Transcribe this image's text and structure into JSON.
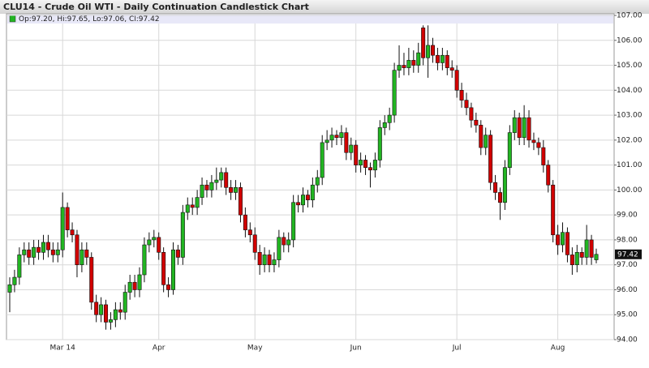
{
  "chart_data": {
    "type": "candlestick",
    "title": "CLU14 - Crude Oil WTI - Daily Continuation Candlestick Chart",
    "legend_text": "Op:97.20, Hi:97.65, Lo:97.06, Cl:97.42",
    "up_color": "#22b522",
    "down_color": "#d10000",
    "grid": true,
    "categories": [
      null,
      null,
      null,
      null,
      null,
      null,
      null,
      null,
      null,
      null,
      null,
      "Mar 14",
      null,
      null,
      null,
      null,
      null,
      null,
      null,
      null,
      null,
      null,
      null,
      null,
      null,
      null,
      null,
      null,
      null,
      null,
      null,
      "Apr",
      null,
      null,
      null,
      null,
      null,
      null,
      null,
      null,
      null,
      null,
      null,
      null,
      null,
      null,
      null,
      null,
      null,
      null,
      null,
      "May",
      null,
      null,
      null,
      null,
      null,
      null,
      null,
      null,
      null,
      null,
      null,
      null,
      null,
      null,
      null,
      null,
      null,
      null,
      null,
      null,
      "Jun",
      null,
      null,
      null,
      null,
      null,
      null,
      null,
      null,
      null,
      null,
      null,
      null,
      null,
      null,
      null,
      null,
      null,
      null,
      null,
      null,
      "Jul",
      null,
      null,
      null,
      null,
      null,
      null,
      null,
      null,
      null,
      null,
      null,
      null,
      null,
      null,
      null,
      null,
      null,
      null,
      null,
      null,
      "Aug",
      null,
      null,
      null,
      null,
      null,
      null,
      null,
      null
    ],
    "open": [
      95.9,
      96.2,
      96.5,
      97.4,
      97.6,
      97.3,
      97.7,
      97.5,
      97.9,
      97.6,
      97.4,
      97.6,
      99.3,
      98.4,
      98.2,
      97.0,
      97.6,
      97.3,
      95.5,
      95.0,
      95.4,
      94.7,
      94.8,
      95.2,
      95.1,
      95.9,
      96.3,
      96.0,
      96.6,
      97.8,
      98.0,
      98.1,
      97.5,
      96.2,
      96.0,
      97.6,
      97.3,
      99.1,
      99.4,
      99.3,
      99.7,
      100.2,
      100.0,
      100.3,
      100.4,
      100.7,
      100.1,
      99.9,
      100.1,
      99.0,
      98.4,
      98.2,
      97.5,
      97.0,
      97.4,
      97.0,
      97.2,
      98.1,
      97.8,
      98.0,
      99.5,
      99.4,
      99.8,
      99.6,
      100.2,
      100.5,
      101.9,
      102.0,
      102.2,
      102.1,
      102.3,
      101.5,
      101.8,
      101.0,
      101.2,
      100.9,
      100.8,
      101.2,
      102.5,
      102.7,
      103.0,
      104.8,
      105.0,
      104.9,
      105.2,
      105.0,
      106.5,
      105.3,
      105.8,
      105.4,
      105.1,
      105.4,
      104.9,
      104.8,
      104.0,
      103.6,
      103.3,
      102.8,
      102.6,
      101.7,
      102.2,
      100.3,
      99.9,
      99.5,
      100.9,
      102.3,
      102.9,
      102.1,
      102.9,
      102.0,
      101.9,
      101.7,
      101.0,
      100.2,
      98.2,
      97.8,
      98.3,
      97.4,
      97.0,
      97.5,
      97.3,
      98.0,
      97.2
    ],
    "high": [
      96.5,
      96.8,
      97.7,
      97.9,
      97.9,
      98.0,
      98.0,
      98.2,
      98.2,
      97.9,
      97.9,
      99.9,
      99.5,
      98.7,
      98.4,
      97.9,
      97.9,
      97.5,
      95.8,
      95.7,
      95.6,
      95.1,
      95.5,
      95.5,
      96.2,
      96.6,
      96.6,
      96.9,
      98.1,
      98.3,
      98.4,
      98.3,
      97.7,
      96.5,
      97.9,
      97.8,
      99.4,
      99.7,
      99.7,
      100.0,
      100.5,
      100.4,
      100.6,
      100.9,
      100.9,
      100.9,
      100.4,
      100.4,
      100.3,
      99.3,
      98.7,
      98.5,
      97.8,
      97.7,
      97.6,
      97.5,
      98.4,
      98.3,
      98.3,
      99.8,
      99.8,
      100.1,
      100.0,
      100.5,
      100.8,
      102.2,
      102.4,
      102.5,
      102.4,
      102.6,
      102.5,
      102.1,
      102.0,
      101.5,
      101.4,
      101.1,
      101.5,
      102.8,
      103.0,
      103.3,
      105.1,
      105.8,
      105.5,
      105.7,
      105.6,
      105.9,
      106.6,
      106.6,
      106.1,
      105.7,
      105.7,
      105.6,
      105.2,
      105.0,
      104.3,
      103.9,
      103.5,
      103.1,
      102.8,
      102.5,
      102.4,
      100.6,
      100.1,
      101.2,
      102.6,
      103.2,
      103.1,
      103.4,
      103.2,
      102.3,
      102.1,
      102.0,
      101.2,
      100.4,
      98.6,
      98.7,
      98.5,
      97.7,
      97.8,
      97.7,
      98.6,
      98.2,
      97.65
    ],
    "low": [
      95.1,
      95.9,
      96.2,
      97.1,
      97.0,
      97.0,
      97.2,
      97.2,
      97.3,
      97.1,
      97.1,
      97.3,
      98.1,
      97.9,
      96.5,
      96.7,
      97.0,
      95.2,
      94.7,
      94.7,
      94.4,
      94.4,
      94.5,
      94.8,
      94.8,
      95.6,
      95.7,
      95.7,
      96.3,
      97.5,
      97.7,
      97.2,
      95.9,
      95.7,
      95.8,
      97.0,
      97.0,
      98.8,
      99.0,
      99.0,
      99.4,
      99.7,
      99.7,
      100.0,
      100.1,
      99.8,
      99.6,
      99.6,
      98.7,
      98.1,
      97.9,
      97.2,
      96.6,
      96.7,
      96.7,
      96.7,
      96.9,
      97.5,
      97.5,
      97.7,
      99.1,
      99.1,
      99.3,
      99.3,
      99.9,
      100.2,
      101.6,
      101.7,
      101.8,
      101.8,
      101.2,
      101.2,
      100.7,
      100.7,
      100.6,
      100.1,
      100.5,
      100.9,
      102.2,
      102.4,
      102.7,
      104.5,
      104.6,
      104.6,
      104.7,
      104.7,
      105.0,
      104.5,
      105.1,
      104.8,
      104.8,
      104.6,
      104.5,
      103.7,
      103.3,
      103.0,
      102.5,
      102.3,
      101.4,
      101.4,
      100.0,
      99.6,
      98.8,
      99.2,
      100.6,
      102.0,
      101.8,
      101.8,
      101.7,
      101.6,
      101.4,
      100.7,
      99.9,
      97.9,
      97.4,
      97.5,
      97.1,
      96.6,
      96.7,
      97.0,
      97.0,
      97.0,
      97.06
    ],
    "close": [
      96.2,
      96.5,
      97.4,
      97.6,
      97.3,
      97.7,
      97.5,
      97.9,
      97.6,
      97.4,
      97.6,
      99.3,
      98.4,
      98.2,
      97.0,
      97.6,
      97.3,
      95.5,
      95.0,
      95.4,
      94.7,
      94.8,
      95.2,
      95.1,
      95.9,
      96.3,
      96.0,
      96.6,
      97.8,
      98.0,
      98.1,
      97.5,
      96.2,
      96.0,
      97.6,
      97.3,
      99.1,
      99.4,
      99.3,
      99.7,
      100.2,
      100.0,
      100.3,
      100.4,
      100.7,
      100.1,
      99.9,
      100.1,
      99.0,
      98.4,
      98.2,
      97.5,
      97.0,
      97.4,
      97.0,
      97.2,
      98.1,
      97.8,
      98.0,
      99.5,
      99.4,
      99.8,
      99.6,
      100.2,
      100.5,
      101.9,
      102.0,
      102.2,
      102.1,
      102.3,
      101.5,
      101.8,
      101.0,
      101.2,
      100.9,
      100.8,
      101.2,
      102.5,
      102.7,
      103.0,
      104.8,
      105.0,
      104.9,
      105.2,
      105.0,
      105.5,
      105.3,
      105.8,
      105.4,
      105.1,
      105.4,
      104.9,
      104.8,
      104.0,
      103.6,
      103.3,
      102.8,
      102.6,
      101.7,
      102.2,
      100.3,
      99.9,
      99.5,
      100.9,
      102.3,
      102.9,
      102.1,
      102.9,
      102.0,
      101.9,
      101.7,
      101.0,
      100.2,
      98.2,
      97.8,
      98.3,
      97.4,
      97.0,
      97.5,
      97.3,
      98.0,
      97.3,
      97.42
    ],
    "ylim": [
      94,
      107
    ],
    "yticks": [
      {
        "value": 94,
        "label": "94.00"
      },
      {
        "value": 95,
        "label": "95.00"
      },
      {
        "value": 96,
        "label": "96.00"
      },
      {
        "value": 97,
        "label": "97.00"
      },
      {
        "value": 98,
        "label": "98.00"
      },
      {
        "value": 99,
        "label": "99.00"
      },
      {
        "value": 100,
        "label": "100.00"
      },
      {
        "value": 101,
        "label": "101.00"
      },
      {
        "value": 102,
        "label": "102.00"
      },
      {
        "value": 103,
        "label": "103.00"
      },
      {
        "value": 104,
        "label": "104.00"
      },
      {
        "value": 105,
        "label": "105.00"
      },
      {
        "value": 106,
        "label": "106.00"
      },
      {
        "value": 107,
        "label": "107.00"
      }
    ]
  }
}
